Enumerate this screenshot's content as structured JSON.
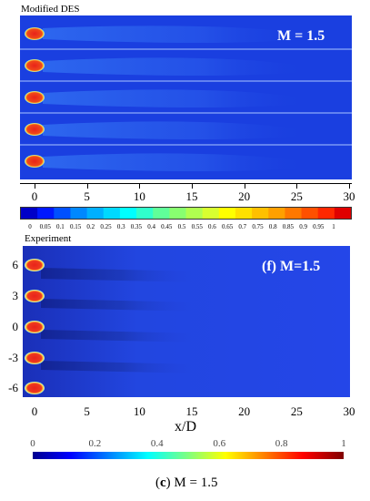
{
  "top_panel": {
    "label": "Modified DES",
    "mach_label": "M = 1.5",
    "x_ticks": [
      "0",
      "5",
      "10",
      "15",
      "20",
      "25",
      "30"
    ]
  },
  "colorbar_top": {
    "labels": [
      "0",
      "0.05",
      "0.1",
      "0.15",
      "0.2",
      "0.25",
      "0.3",
      "0.35",
      "0.4",
      "0.45",
      "0.5",
      "0.55",
      "0.6",
      "0.65",
      "0.7",
      "0.75",
      "0.8",
      "0.85",
      "0.9",
      "0.95",
      "1"
    ]
  },
  "bottom_panel": {
    "label": "Experiment",
    "mach_label": "(f) M=1.5",
    "x_ticks": [
      "0",
      "5",
      "10",
      "15",
      "20",
      "25",
      "30"
    ],
    "y_ticks": [
      "6",
      "3",
      "0",
      "-3",
      "-6"
    ],
    "x_axis_label": "x/D"
  },
  "colorbar_bottom": {
    "labels": [
      "0",
      "0.2",
      "0.4",
      "0.6",
      "0.8",
      "1"
    ]
  },
  "caption": {
    "letter": "c",
    "text": "M = 1.5"
  },
  "colors": {
    "field_blue": "#1a3fe0",
    "jet_red": "#e8231a",
    "stripe_line": "#a9c4ff"
  }
}
